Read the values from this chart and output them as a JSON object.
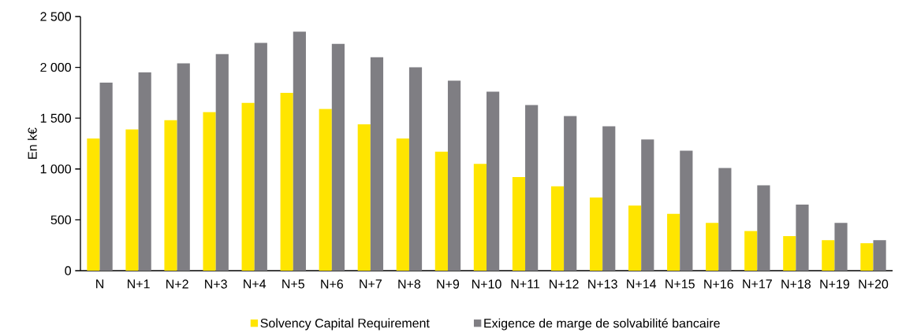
{
  "chart_data": {
    "type": "bar",
    "ylabel": "En k€",
    "categories": [
      "N",
      "N+1",
      "N+2",
      "N+3",
      "N+4",
      "N+5",
      "N+6",
      "N+7",
      "N+8",
      "N+9",
      "N+10",
      "N+11",
      "N+12",
      "N+13",
      "N+14",
      "N+15",
      "N+16",
      "N+17",
      "N+18",
      "N+19",
      "N+20"
    ],
    "series": [
      {
        "name": "Solvency Capital Requirement",
        "color": "#ffe500",
        "values": [
          1300,
          1390,
          1480,
          1560,
          1650,
          1750,
          1590,
          1440,
          1300,
          1170,
          1050,
          920,
          830,
          720,
          640,
          560,
          470,
          390,
          340,
          300,
          270
        ]
      },
      {
        "name": "Exigence de marge de solvabilité bancaire",
        "color": "#7f7e83",
        "values": [
          1850,
          1950,
          2040,
          2130,
          2240,
          2350,
          2230,
          2100,
          2000,
          1870,
          1760,
          1630,
          1520,
          1420,
          1290,
          1180,
          1010,
          840,
          650,
          470,
          300
        ]
      }
    ],
    "ylim": [
      0,
      2500
    ],
    "yticks": [
      0,
      500,
      {
        "value": 1000,
        "label": "1 000"
      },
      {
        "value": 1500,
        "label": "1 500"
      },
      {
        "value": 2000,
        "label": "2 000"
      },
      {
        "value": 2500,
        "label": "2 500"
      }
    ],
    "grid": false,
    "legend": "bottom"
  }
}
